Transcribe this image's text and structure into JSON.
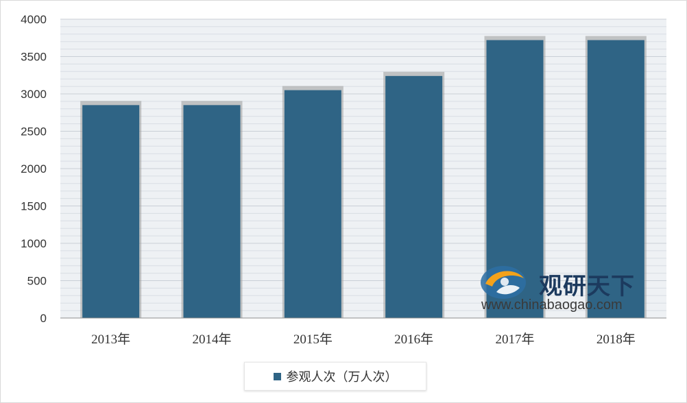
{
  "chart_data": {
    "type": "bar",
    "categories": [
      "2013年",
      "2014年",
      "2015年",
      "2016年",
      "2017年",
      "2018年"
    ],
    "series": [
      {
        "name": "参观人次（万人次）",
        "values": [
          2850,
          2850,
          3050,
          3240,
          3720,
          3720
        ],
        "color": "#2f6485"
      }
    ],
    "yticks": [
      0,
      500,
      1000,
      1500,
      2000,
      2500,
      3000,
      3500,
      4000
    ],
    "ylim": [
      0,
      4000
    ],
    "grid": true,
    "legend": "bottom",
    "title": "",
    "xlabel": "",
    "ylabel": ""
  },
  "watermark": {
    "title": "观研天下",
    "url": "www.chinabaogao.com"
  }
}
